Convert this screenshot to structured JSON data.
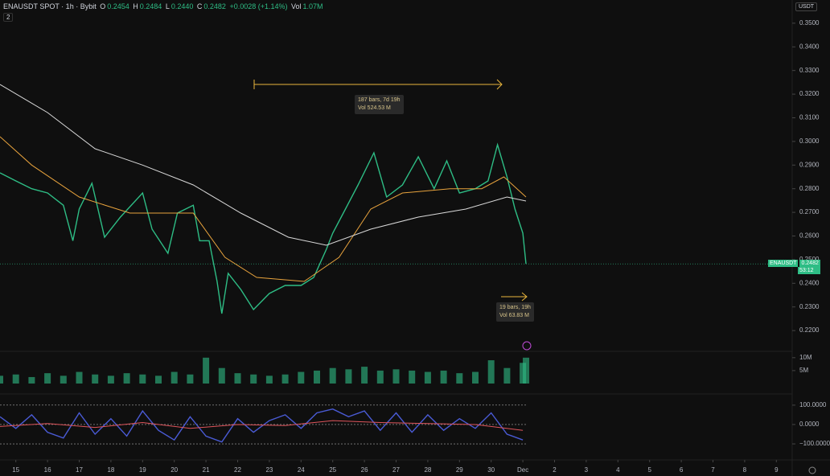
{
  "header": {
    "symbol": "ENAUSDT SPOT · 1h · Bybit",
    "o_label": "O",
    "open": "0.2454",
    "h_label": "H",
    "high": "0.2484",
    "l_label": "L",
    "low": "0.2440",
    "c_label": "C",
    "close": "0.2482",
    "change": "+0.0028 (+1.14%)",
    "vol_label": "Vol",
    "volume": "1.07M",
    "indicators": "2",
    "currency": "USDT"
  },
  "last_price_tag": {
    "symbol": "ENAUSDT",
    "price": "0.2482",
    "countdown": "53:12"
  },
  "measures": [
    {
      "bars": "187 bars, 7d 19h",
      "vol": "Vol 524.53 M"
    },
    {
      "bars": "19 bars, 19h",
      "vol": "Vol 63.83 M"
    }
  ],
  "chart_data": [
    {
      "type": "line",
      "xlim": [
        -0.5,
        24.5
      ],
      "xticks": [
        {
          "value": 0,
          "label": "15"
        },
        {
          "value": 1,
          "label": "16"
        },
        {
          "value": 2,
          "label": "17"
        },
        {
          "value": 3,
          "label": "18"
        },
        {
          "value": 4,
          "label": "19"
        },
        {
          "value": 5,
          "label": "20"
        },
        {
          "value": 6,
          "label": "21"
        },
        {
          "value": 7,
          "label": "22"
        },
        {
          "value": 8,
          "label": "23"
        },
        {
          "value": 9,
          "label": "24"
        },
        {
          "value": 10,
          "label": "25"
        },
        {
          "value": 11,
          "label": "26"
        },
        {
          "value": 12,
          "label": "27"
        },
        {
          "value": 13,
          "label": "28"
        },
        {
          "value": 14,
          "label": "29"
        },
        {
          "value": 15,
          "label": "30"
        },
        {
          "value": 16,
          "label": "Dec"
        },
        {
          "value": 17,
          "label": "2"
        },
        {
          "value": 18,
          "label": "3"
        },
        {
          "value": 19,
          "label": "4"
        },
        {
          "value": 20,
          "label": "5"
        },
        {
          "value": 21,
          "label": "6"
        },
        {
          "value": 22,
          "label": "7"
        },
        {
          "value": 23,
          "label": "8"
        },
        {
          "value": 24,
          "label": "9"
        }
      ],
      "ylim": [
        0.2112,
        0.3537
      ],
      "yticks": [
        {
          "value": 0.35,
          "label": "0.3500"
        },
        {
          "value": 0.34,
          "label": "0.3400"
        },
        {
          "value": 0.33,
          "label": "0.3300"
        },
        {
          "value": 0.32,
          "label": "0.3200"
        },
        {
          "value": 0.31,
          "label": "0.3100"
        },
        {
          "value": 0.3,
          "label": "0.3000"
        },
        {
          "value": 0.29,
          "label": "0.2900"
        },
        {
          "value": 0.28,
          "label": "0.2800"
        },
        {
          "value": 0.27,
          "label": "0.2700"
        },
        {
          "value": 0.26,
          "label": "0.2600"
        },
        {
          "value": 0.25,
          "label": "0.2500"
        },
        {
          "value": 0.24,
          "label": "0.2400"
        },
        {
          "value": 0.23,
          "label": "0.2300"
        },
        {
          "value": 0.22,
          "label": "0.2200"
        }
      ],
      "series": [
        {
          "color": "#2ebd85",
          "x": [
            -0.5,
            0,
            0.5,
            1,
            1.5,
            1.8,
            2,
            2.4,
            2.8,
            3.3,
            4,
            4.3,
            4.8,
            5.1,
            5.6,
            5.8,
            6.1,
            6.35,
            6.5,
            6.7,
            7.1,
            7.5,
            8,
            8.5,
            9,
            9.4,
            9.8,
            10,
            10.4,
            10.8,
            11.3,
            11.7,
            12.2,
            12.7,
            13.2,
            13.6,
            14,
            14.5,
            14.9,
            15.2,
            15.5,
            15.75,
            16,
            16.1
          ],
          "values": [
            0.2867,
            0.2833,
            0.28,
            0.2782,
            0.273,
            0.258,
            0.2714,
            0.2823,
            0.2595,
            0.268,
            0.2782,
            0.2629,
            0.2527,
            0.2697,
            0.273,
            0.258,
            0.258,
            0.2408,
            0.2272,
            0.2442,
            0.2374,
            0.2289,
            0.2357,
            0.2391,
            0.2391,
            0.2425,
            0.2544,
            0.2612,
            0.2714,
            0.2816,
            0.2952,
            0.2765,
            0.2816,
            0.2935,
            0.28,
            0.2918,
            0.2782,
            0.28,
            0.2833,
            0.2986,
            0.285,
            0.2714,
            0.2612,
            0.2482
          ]
        },
        {
          "color": "#e8a33d",
          "x": [
            -0.5,
            0.5,
            2,
            3.6,
            5.6,
            6.6,
            7.6,
            9.1,
            10.2,
            11.2,
            12.2,
            13.7,
            14.7,
            15.4,
            16.1
          ],
          "values": [
            0.302,
            0.29,
            0.2765,
            0.2697,
            0.2697,
            0.251,
            0.2425,
            0.2408,
            0.251,
            0.2714,
            0.2782,
            0.28,
            0.28,
            0.285,
            0.2765
          ]
        },
        {
          "color": "#d9d9d9",
          "x": [
            -0.5,
            1,
            2.5,
            4,
            5.6,
            7.1,
            8.6,
            9.8,
            11.2,
            12.7,
            14.2,
            15.5,
            16.1
          ],
          "values": [
            0.3241,
            0.3122,
            0.2969,
            0.29,
            0.2816,
            0.2697,
            0.2595,
            0.2561,
            0.2629,
            0.268,
            0.2714,
            0.2765,
            0.2748
          ]
        }
      ]
    },
    {
      "type": "bar",
      "ylim": [
        0,
        11500000
      ],
      "yticks": [
        {
          "value": 10000000,
          "label": "10M"
        },
        {
          "value": 5000000,
          "label": "5M"
        }
      ],
      "color": "#2ebd85",
      "x": [
        -0.5,
        0,
        0.5,
        1,
        1.5,
        2,
        2.5,
        3,
        3.5,
        4,
        4.5,
        5,
        5.5,
        6,
        6.5,
        7,
        7.5,
        8,
        8.5,
        9,
        9.5,
        10,
        10.5,
        11,
        11.5,
        12,
        12.5,
        13,
        13.5,
        14,
        14.5,
        15,
        15.5,
        16,
        16.1
      ],
      "values": [
        3000000,
        3500000,
        2500000,
        4000000,
        3000000,
        4500000,
        3500000,
        3000000,
        4000000,
        3500000,
        3000000,
        4500000,
        3500000,
        10000000,
        6000000,
        4000000,
        3500000,
        3000000,
        3500000,
        4500000,
        5000000,
        6000000,
        5500000,
        6500000,
        5000000,
        5500000,
        5000000,
        4500000,
        5000000,
        4000000,
        4500000,
        9000000,
        6000000,
        8000000,
        10000000
      ]
    },
    {
      "type": "line",
      "ylim": [
        -133,
        116
      ],
      "yticks": [
        {
          "value": 100,
          "label": "100.0000"
        },
        {
          "value": 0,
          "label": "0.0000"
        },
        {
          "value": -100,
          "label": "−100.0000"
        }
      ],
      "series": [
        {
          "color": "#4a5bd6",
          "x": [
            -0.5,
            0,
            0.5,
            1,
            1.5,
            2,
            2.5,
            3,
            3.5,
            4,
            4.5,
            5,
            5.5,
            6,
            6.5,
            7,
            7.5,
            8,
            8.5,
            9,
            9.5,
            10,
            10.5,
            11,
            11.5,
            12,
            12.5,
            13,
            13.5,
            14,
            14.5,
            15,
            15.5,
            16
          ],
          "values": [
            40,
            -20,
            50,
            -40,
            -70,
            60,
            -50,
            30,
            -60,
            70,
            -30,
            -80,
            40,
            -60,
            -90,
            30,
            -40,
            20,
            50,
            -20,
            60,
            80,
            40,
            70,
            -30,
            60,
            -40,
            50,
            -30,
            30,
            -20,
            60,
            -50,
            -80
          ]
        },
        {
          "color": "#e0555c",
          "x": [
            -0.5,
            1,
            2.5,
            4,
            5.5,
            7,
            8.5,
            10,
            11.5,
            13,
            14.5,
            16
          ],
          "values": [
            -10,
            5,
            -15,
            10,
            -20,
            0,
            -5,
            20,
            10,
            5,
            0,
            -30
          ]
        }
      ]
    }
  ]
}
